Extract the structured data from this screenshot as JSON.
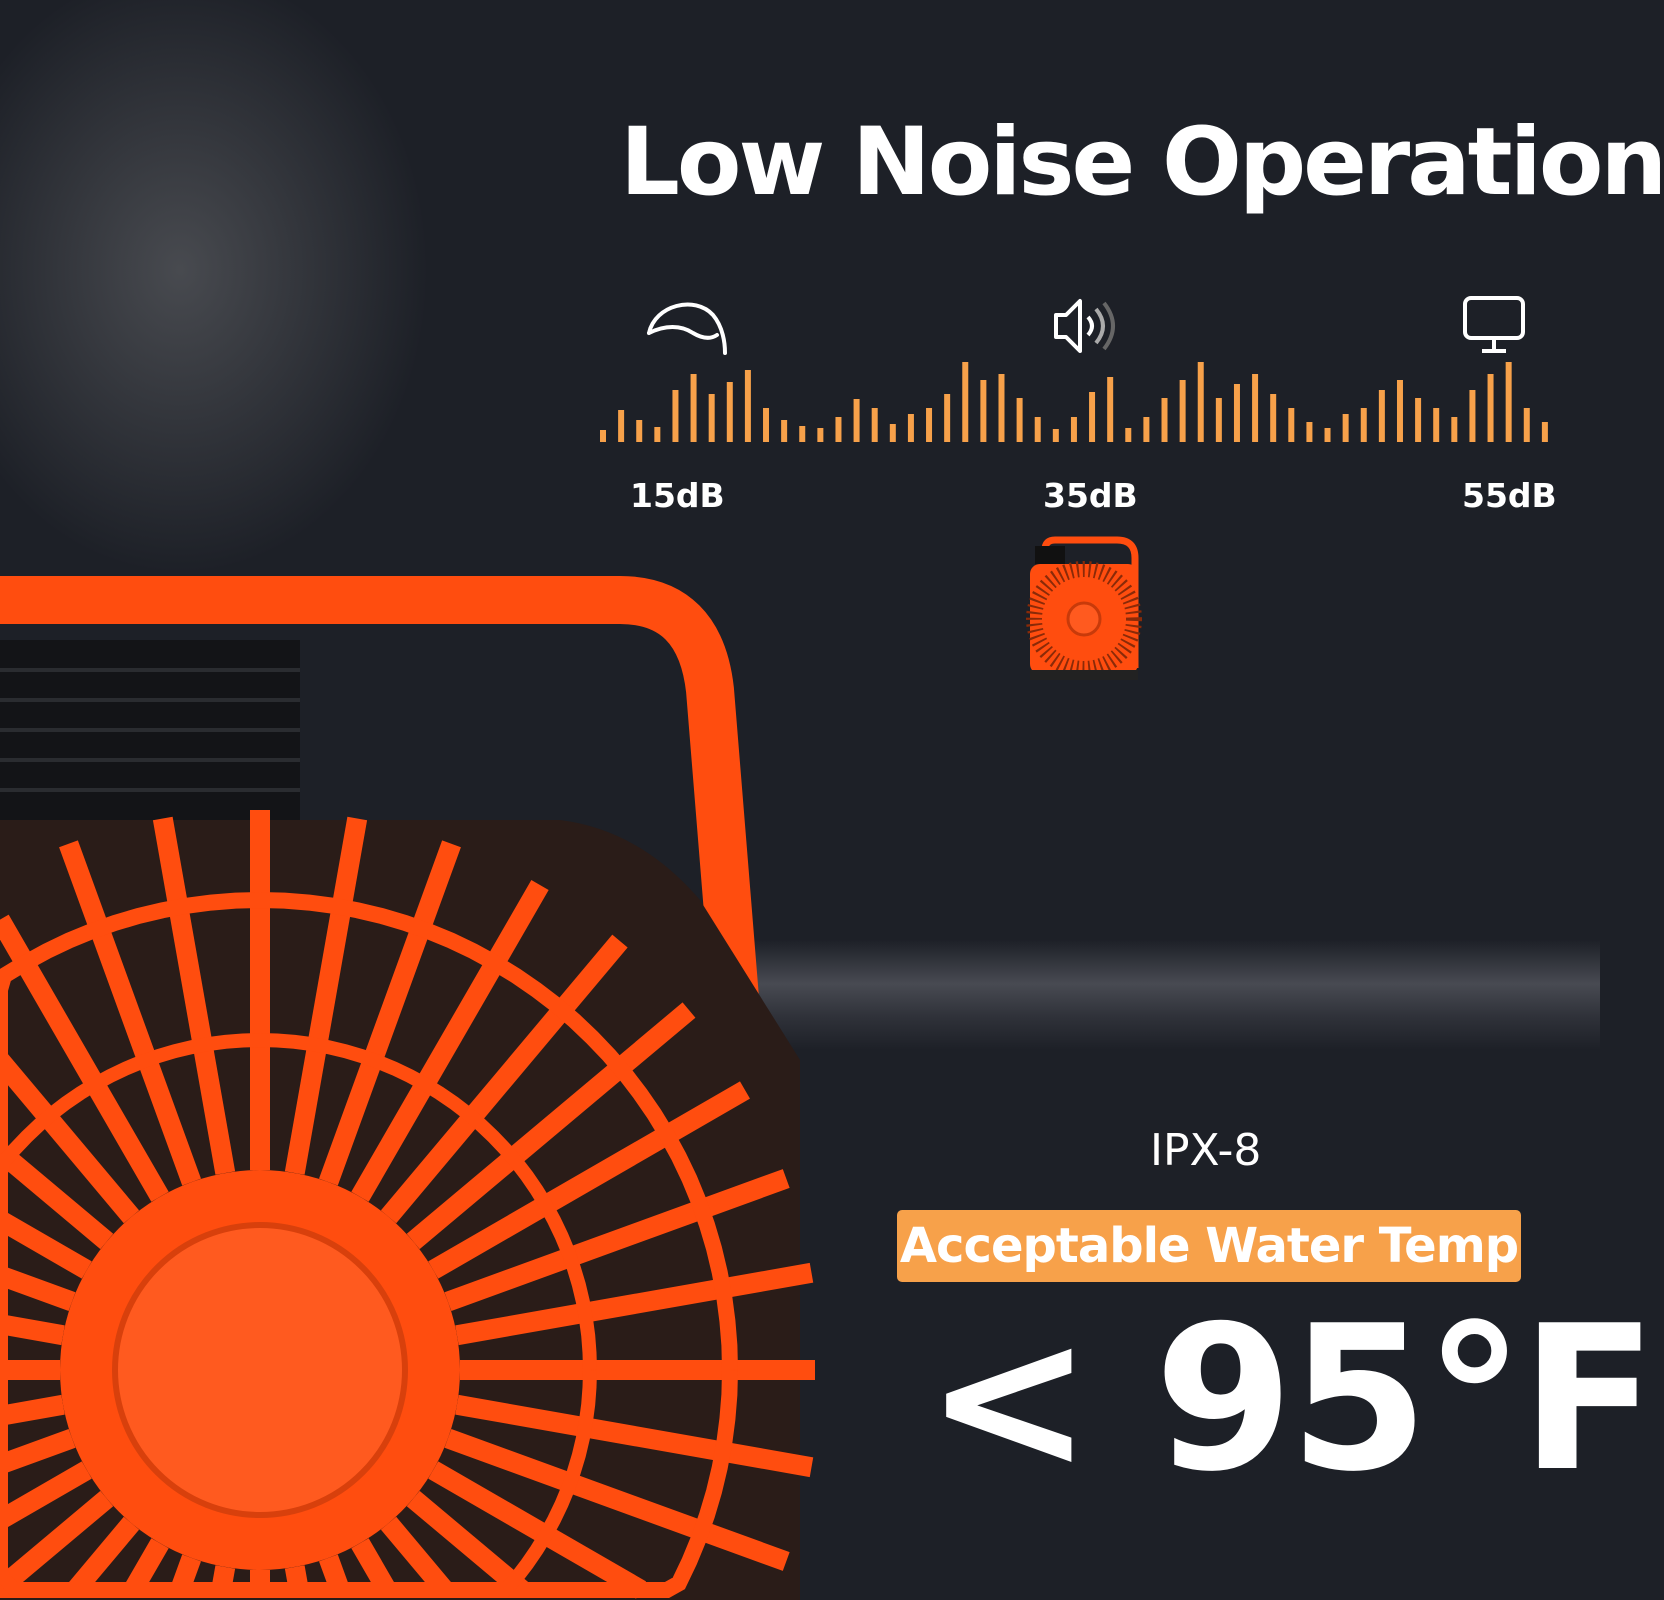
{
  "title": "Low Noise Operation",
  "noise_scale": {
    "levels": [
      {
        "label": "15dB",
        "icon": "leaf-icon"
      },
      {
        "label": "35dB",
        "icon": "speaker-icon"
      },
      {
        "label": "55dB",
        "icon": "monitor-icon"
      }
    ],
    "bar_color": "#f7a14a"
  },
  "rating": "IPX-8",
  "badge": "Acceptable Water Temp",
  "temperature": "< 95°F",
  "colors": {
    "background": "#1d2027",
    "product": "#ff4d0f",
    "accent": "#f7a14a"
  }
}
